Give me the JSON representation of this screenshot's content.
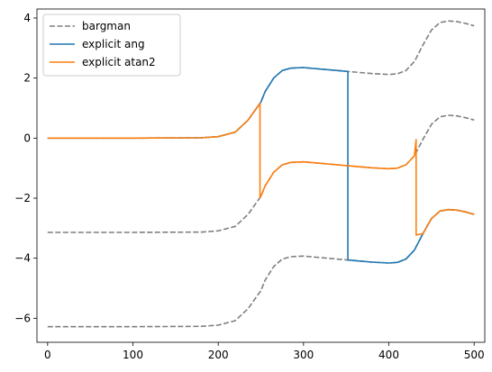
{
  "chart_data": {
    "type": "line",
    "title": "",
    "xlabel": "",
    "ylabel": "",
    "xlim": [
      -12.5,
      512.5
    ],
    "ylim": [
      -6.8,
      4.3
    ],
    "xticks": [
      0,
      100,
      200,
      300,
      400,
      500
    ],
    "yticks": [
      -6,
      -4,
      -2,
      0,
      2,
      4
    ],
    "xtick_labels": [
      "0",
      "100",
      "200",
      "300",
      "400",
      "500"
    ],
    "ytick_labels": [
      "−6",
      "−4",
      "−2",
      "0",
      "2",
      "4"
    ],
    "grid": false,
    "legend_position": "upper-left",
    "series": [
      {
        "name": "bargman",
        "color": "#7f7f7f",
        "style": "dashed",
        "segments": [
          {
            "x": [
              0,
              100,
              180,
              200,
              220,
              235,
              245,
              250,
              255,
              265,
              275,
              285,
              300,
              320,
              340,
              360,
              380,
              400,
              410,
              420,
              430,
              440,
              450,
              460,
              470,
              480,
              490,
              500
            ],
            "y": [
              0.0,
              0.0,
              0.01,
              0.05,
              0.2,
              0.6,
              1.0,
              1.2,
              1.55,
              2.0,
              2.25,
              2.33,
              2.35,
              2.3,
              2.25,
              2.2,
              2.15,
              2.12,
              2.14,
              2.25,
              2.55,
              3.1,
              3.6,
              3.85,
              3.9,
              3.88,
              3.82,
              3.74
            ]
          },
          {
            "x": [
              0,
              100,
              180,
              200,
              220,
              235,
              245,
              250,
              255,
              265,
              275,
              285,
              300,
              320,
              340,
              360,
              380,
              400,
              410,
              420,
              430,
              440,
              450,
              460,
              470,
              480,
              490,
              500
            ],
            "y": [
              -3.14,
              -3.14,
              -3.13,
              -3.09,
              -2.94,
              -2.54,
              -2.14,
              -1.94,
              -1.59,
              -1.14,
              -0.89,
              -0.81,
              -0.79,
              -0.84,
              -0.89,
              -0.94,
              -0.99,
              -1.02,
              -1.0,
              -0.89,
              -0.59,
              -0.04,
              0.46,
              0.71,
              0.76,
              0.74,
              0.68,
              0.6
            ]
          },
          {
            "x": [
              0,
              100,
              180,
              200,
              220,
              235,
              245,
              250,
              255,
              265,
              275,
              285,
              300,
              320,
              340,
              360,
              380,
              400,
              410,
              420,
              430,
              440,
              450,
              460,
              470,
              480,
              490,
              500
            ],
            "y": [
              -6.28,
              -6.28,
              -6.27,
              -6.23,
              -6.08,
              -5.68,
              -5.28,
              -5.08,
              -4.73,
              -4.28,
              -4.03,
              -3.95,
              -3.93,
              -3.98,
              -4.03,
              -4.08,
              -4.13,
              -4.16,
              -4.14,
              -4.03,
              -3.73,
              -3.18,
              -2.68,
              -2.43,
              -2.38,
              -2.4,
              -2.46,
              -2.54
            ]
          }
        ]
      },
      {
        "name": "explicit ang",
        "color": "#1f77b4",
        "style": "solid",
        "segments": [
          {
            "x": [
              0,
              100,
              180,
              200,
              220,
              235,
              245,
              250,
              255,
              265,
              275,
              285,
              300,
              320,
              340,
              352,
              352,
              360,
              380,
              400,
              410,
              420,
              430,
              440,
              450,
              460,
              470,
              480,
              490,
              500
            ],
            "y": [
              0.0,
              0.0,
              0.01,
              0.05,
              0.2,
              0.6,
              1.0,
              1.2,
              1.55,
              2.0,
              2.25,
              2.33,
              2.35,
              2.3,
              2.25,
              2.22,
              -4.06,
              -4.08,
              -4.13,
              -4.16,
              -4.14,
              -4.03,
              -3.73,
              -3.18,
              -2.68,
              -2.43,
              -2.38,
              -2.4,
              -2.46,
              -2.54
            ]
          }
        ]
      },
      {
        "name": "explicit atan2",
        "color": "#ff7f0e",
        "style": "solid",
        "segments": [
          {
            "x": [
              0,
              100,
              180,
              200,
              220,
              235,
              245,
              249,
              249,
              250,
              255,
              265,
              275,
              285,
              300,
              320,
              340,
              360,
              380,
              400,
              410,
              420,
              430,
              432,
              432,
              440,
              450,
              460,
              470,
              480,
              490,
              500
            ],
            "y": [
              0.0,
              0.0,
              0.01,
              0.05,
              0.2,
              0.6,
              1.0,
              1.15,
              -1.98,
              -1.94,
              -1.59,
              -1.14,
              -0.89,
              -0.81,
              -0.79,
              -0.84,
              -0.89,
              -0.94,
              -0.99,
              -1.02,
              -1.0,
              -0.89,
              -0.59,
              -0.05,
              -3.23,
              -3.18,
              -2.68,
              -2.43,
              -2.38,
              -2.4,
              -2.46,
              -2.54
            ]
          }
        ]
      }
    ]
  }
}
